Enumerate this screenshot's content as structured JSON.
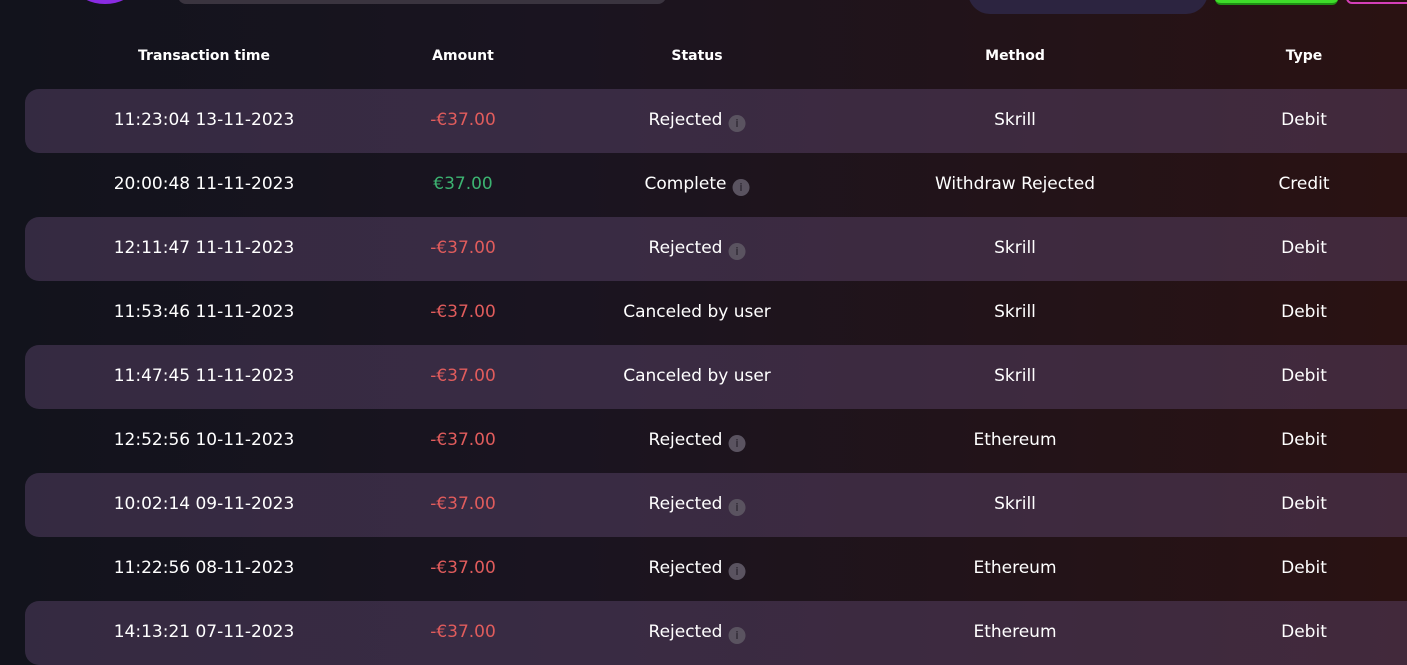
{
  "colors": {
    "negative": "#e05c5c",
    "positive": "#3cb371",
    "accent_green": "#3fdc2a",
    "accent_pink": "#d43fb8",
    "avatar": "#8a2be2"
  },
  "table": {
    "columns": [
      "Transaction time",
      "Amount",
      "Status",
      "Method",
      "Type"
    ],
    "rows": [
      {
        "time": "11:23:04 13-11-2023",
        "amount": "-€37.00",
        "sign": "neg",
        "status": "Rejected",
        "info": true,
        "method": "Skrill",
        "type": "Debit"
      },
      {
        "time": "20:00:48 11-11-2023",
        "amount": "€37.00",
        "sign": "pos",
        "status": "Complete",
        "info": true,
        "method": "Withdraw Rejected",
        "type": "Credit"
      },
      {
        "time": "12:11:47 11-11-2023",
        "amount": "-€37.00",
        "sign": "neg",
        "status": "Rejected",
        "info": true,
        "method": "Skrill",
        "type": "Debit"
      },
      {
        "time": "11:53:46 11-11-2023",
        "amount": "-€37.00",
        "sign": "neg",
        "status": "Canceled by user",
        "info": false,
        "method": "Skrill",
        "type": "Debit"
      },
      {
        "time": "11:47:45 11-11-2023",
        "amount": "-€37.00",
        "sign": "neg",
        "status": "Canceled by user",
        "info": false,
        "method": "Skrill",
        "type": "Debit"
      },
      {
        "time": "12:52:56 10-11-2023",
        "amount": "-€37.00",
        "sign": "neg",
        "status": "Rejected",
        "info": true,
        "method": "Ethereum",
        "type": "Debit"
      },
      {
        "time": "10:02:14 09-11-2023",
        "amount": "-€37.00",
        "sign": "neg",
        "status": "Rejected",
        "info": true,
        "method": "Skrill",
        "type": "Debit"
      },
      {
        "time": "11:22:56 08-11-2023",
        "amount": "-€37.00",
        "sign": "neg",
        "status": "Rejected",
        "info": true,
        "method": "Ethereum",
        "type": "Debit"
      },
      {
        "time": "14:13:21 07-11-2023",
        "amount": "-€37.00",
        "sign": "neg",
        "status": "Rejected",
        "info": true,
        "method": "Ethereum",
        "type": "Debit"
      }
    ]
  }
}
